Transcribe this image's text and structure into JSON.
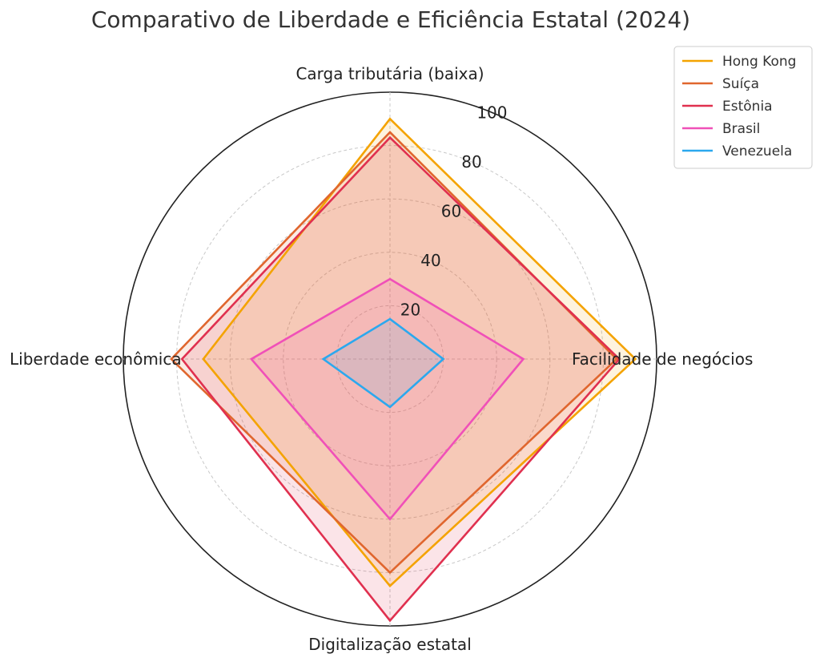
{
  "chart_data": {
    "type": "radar",
    "title": "Comparativo de Liberdade e Eficiência Estatal (2024)",
    "axes": [
      "Carga tributária (baixa)",
      "Facilidade de negócios",
      "Digitalização estatal",
      "Liberdade econômica"
    ],
    "rticks": [
      20,
      40,
      60,
      80,
      100
    ],
    "rlim": [
      0,
      100
    ],
    "grid": true,
    "legend_position": "top-right",
    "series": [
      {
        "name": "Hong Kong",
        "color": "#F4A300",
        "values": [
          90,
          92,
          85,
          70
        ]
      },
      {
        "name": "Suíça",
        "color": "#E0662E",
        "values": [
          85,
          85,
          80,
          82
        ]
      },
      {
        "name": "Estônia",
        "color": "#E0304F",
        "values": [
          83,
          86,
          98,
          78
        ]
      },
      {
        "name": "Brasil",
        "color": "#F050B8",
        "values": [
          30,
          50,
          60,
          52
        ]
      },
      {
        "name": "Venezuela",
        "color": "#2BA8EE",
        "values": [
          15,
          20,
          18,
          25
        ]
      }
    ]
  }
}
